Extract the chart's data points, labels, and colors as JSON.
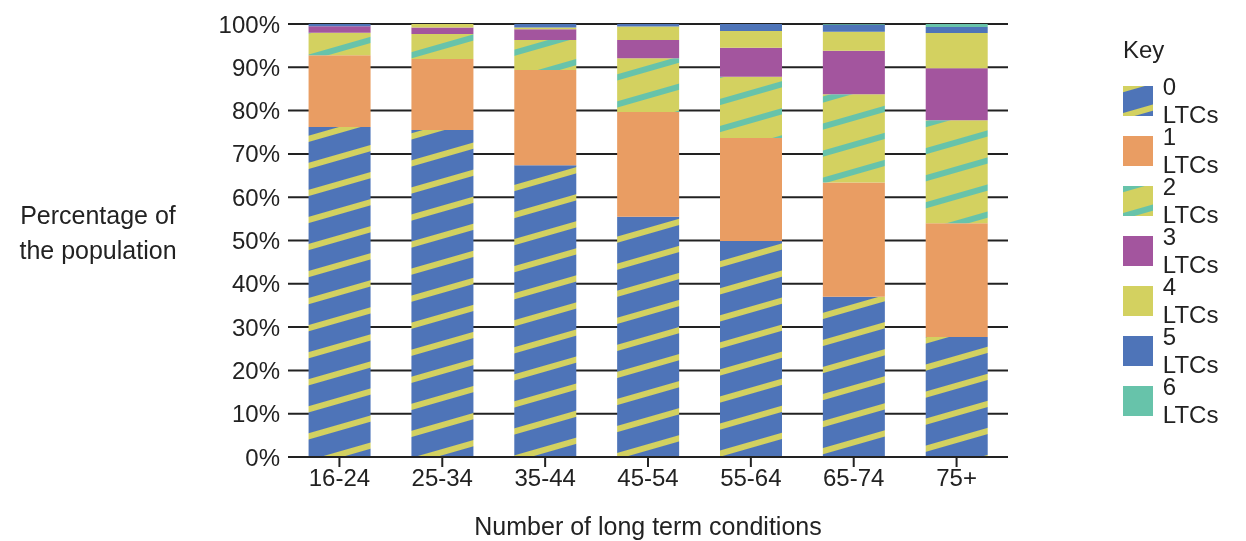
{
  "chart_data": {
    "type": "bar",
    "stacked": true,
    "xlabel": "Number of long term conditions",
    "ylabel": "Percentage of the population",
    "legend_title": "Key",
    "legend": "right",
    "grid": "y",
    "categories": [
      "16-24",
      "25-34",
      "35-44",
      "45-54",
      "55-64",
      "65-74",
      "75+"
    ],
    "ylim": [
      0,
      100
    ],
    "yticks": [
      {
        "value": 0,
        "label": "0%"
      },
      {
        "value": 10,
        "label": "10%"
      },
      {
        "value": 20,
        "label": "20%"
      },
      {
        "value": 30,
        "label": "30%"
      },
      {
        "value": 40,
        "label": "40%"
      },
      {
        "value": 50,
        "label": "50%"
      },
      {
        "value": 60,
        "label": "60%"
      },
      {
        "value": 70,
        "label": "70%"
      },
      {
        "value": 80,
        "label": "80%"
      },
      {
        "value": 90,
        "label": "90%"
      },
      {
        "value": 100,
        "label": "100%"
      }
    ],
    "series": [
      {
        "name": "0 LTCs",
        "color": "#4e74b8",
        "values": [
          76.2,
          75.5,
          67.4,
          55.5,
          49.9,
          37.0,
          27.7
        ]
      },
      {
        "name": "1 LTCs",
        "color": "#e99d63",
        "values": [
          16.6,
          16.4,
          22.0,
          24.2,
          23.8,
          26.4,
          26.3
        ]
      },
      {
        "name": "2 LTCs",
        "color": "#d3d160",
        "values": [
          5.2,
          5.8,
          6.9,
          12.4,
          14.1,
          20.4,
          23.8
        ]
      },
      {
        "name": "3 LTCs",
        "color": "#a3559e",
        "values": [
          1.5,
          1.5,
          2.5,
          4.2,
          6.7,
          10.0,
          12.0
        ]
      },
      {
        "name": "4 LTCs",
        "color": "#d3d160",
        "values": [
          0,
          0.8,
          0.4,
          3.1,
          3.9,
          4.4,
          8.1
        ]
      },
      {
        "name": "5 LTCs",
        "color": "#4e74b8",
        "values": [
          0.5,
          0,
          0.8,
          0.6,
          1.6,
          1.6,
          1.4
        ]
      },
      {
        "name": "6 LTCs",
        "color": "#67c3aa",
        "values": [
          0,
          0,
          0,
          0,
          0,
          0.2,
          0.7
        ]
      }
    ]
  }
}
